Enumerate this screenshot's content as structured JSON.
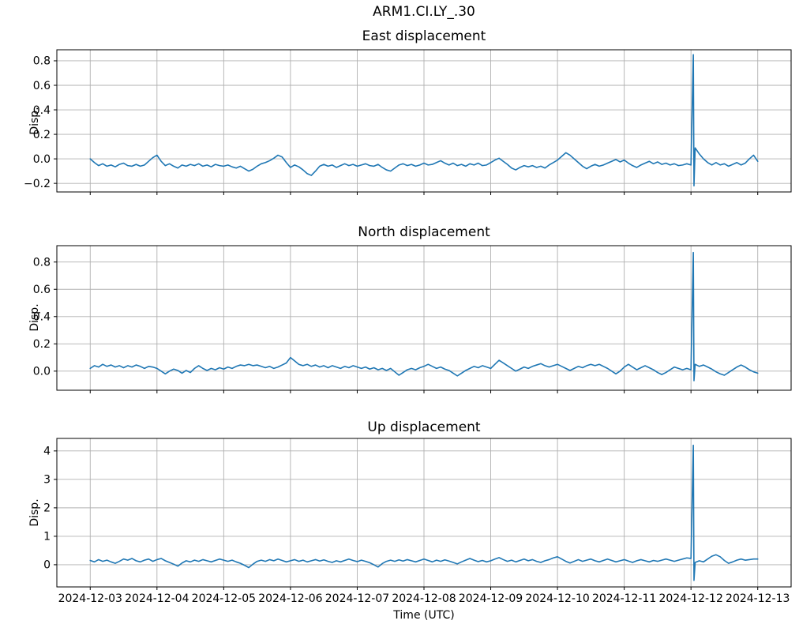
{
  "figure": {
    "suptitle": "ARM1.CI.LY_.30",
    "xlabel": "Time (UTC)",
    "background": "#ffffff",
    "line_color": "#1f77b4",
    "grid_color": "#b0b0b0",
    "spine_color": "#000000",
    "text_color": "#000000",
    "xtick_labels": [
      "2024-12-03",
      "2024-12-04",
      "2024-12-05",
      "2024-12-06",
      "2024-12-07",
      "2024-12-08",
      "2024-12-09",
      "2024-12-10",
      "2024-12-11",
      "2024-12-12",
      "2024-12-13"
    ]
  },
  "chart_data": [
    {
      "type": "line",
      "title": "East displacement",
      "ylabel": "Disp.",
      "xlabel": "",
      "grid": true,
      "legend": false,
      "xlim": [
        -0.5,
        10.5
      ],
      "ylim": [
        -0.27,
        0.89
      ],
      "xticks": [
        0,
        1,
        2,
        3,
        4,
        5,
        6,
        7,
        8,
        9,
        10
      ],
      "yticks": [
        0.8,
        0.6,
        0.4,
        0.2,
        0.0,
        -0.2
      ],
      "ytick_labels": [
        "0.8",
        "0.6",
        "0.4",
        "0.2",
        "0.0",
        "−0.2"
      ],
      "x0": 0,
      "dt": 0.0625,
      "values": [
        0.0,
        -0.03,
        -0.055,
        -0.04,
        -0.06,
        -0.05,
        -0.065,
        -0.045,
        -0.035,
        -0.055,
        -0.06,
        -0.045,
        -0.06,
        -0.05,
        -0.02,
        0.01,
        0.03,
        -0.02,
        -0.055,
        -0.04,
        -0.06,
        -0.075,
        -0.05,
        -0.06,
        -0.045,
        -0.055,
        -0.04,
        -0.06,
        -0.05,
        -0.065,
        -0.045,
        -0.055,
        -0.06,
        -0.05,
        -0.065,
        -0.075,
        -0.06,
        -0.08,
        -0.1,
        -0.085,
        -0.06,
        -0.04,
        -0.03,
        -0.015,
        0.005,
        0.03,
        0.015,
        -0.03,
        -0.07,
        -0.05,
        -0.065,
        -0.09,
        -0.12,
        -0.135,
        -0.1,
        -0.06,
        -0.045,
        -0.06,
        -0.05,
        -0.07,
        -0.055,
        -0.04,
        -0.055,
        -0.045,
        -0.06,
        -0.05,
        -0.04,
        -0.055,
        -0.06,
        -0.045,
        -0.07,
        -0.09,
        -0.1,
        -0.075,
        -0.05,
        -0.04,
        -0.055,
        -0.045,
        -0.06,
        -0.05,
        -0.035,
        -0.05,
        -0.045,
        -0.03,
        -0.015,
        -0.035,
        -0.05,
        -0.035,
        -0.055,
        -0.045,
        -0.06,
        -0.04,
        -0.05,
        -0.035,
        -0.055,
        -0.05,
        -0.03,
        -0.01,
        0.005,
        -0.02,
        -0.045,
        -0.075,
        -0.09,
        -0.07,
        -0.055,
        -0.065,
        -0.055,
        -0.07,
        -0.06,
        -0.075,
        -0.05,
        -0.03,
        -0.01,
        0.02,
        0.05,
        0.03,
        0.0,
        -0.03,
        -0.06,
        -0.08,
        -0.06,
        -0.045,
        -0.06,
        -0.05,
        -0.035,
        -0.02,
        -0.005,
        -0.025,
        -0.01,
        -0.035,
        -0.055,
        -0.07,
        -0.05,
        -0.035,
        -0.02,
        -0.04,
        -0.025,
        -0.045,
        -0.035,
        -0.05,
        -0.04,
        -0.055,
        -0.05,
        -0.04,
        -0.05,
        0.09,
        0.04,
        0.0,
        -0.03,
        -0.05,
        -0.03,
        -0.05,
        -0.04,
        -0.06,
        -0.045,
        -0.03,
        -0.05,
        -0.035,
        0.0,
        0.03,
        -0.02
      ],
      "spike": {
        "x": 9.04,
        "peak": 0.85,
        "trough": -0.22
      }
    },
    {
      "type": "line",
      "title": "North displacement",
      "ylabel": "Disp.",
      "xlabel": "",
      "grid": true,
      "legend": false,
      "xlim": [
        -0.5,
        10.5
      ],
      "ylim": [
        -0.14,
        0.92
      ],
      "xticks": [
        0,
        1,
        2,
        3,
        4,
        5,
        6,
        7,
        8,
        9,
        10
      ],
      "yticks": [
        0.8,
        0.6,
        0.4,
        0.2,
        0.0
      ],
      "ytick_labels": [
        "0.8",
        "0.6",
        "0.4",
        "0.2",
        "0.0"
      ],
      "x0": 0,
      "dt": 0.0625,
      "values": [
        0.02,
        0.04,
        0.03,
        0.05,
        0.035,
        0.045,
        0.03,
        0.04,
        0.025,
        0.04,
        0.03,
        0.045,
        0.035,
        0.02,
        0.035,
        0.03,
        0.02,
        0.0,
        -0.02,
        0.0,
        0.015,
        0.005,
        -0.015,
        0.005,
        -0.01,
        0.02,
        0.04,
        0.02,
        0.005,
        0.02,
        0.01,
        0.025,
        0.015,
        0.03,
        0.02,
        0.035,
        0.045,
        0.04,
        0.05,
        0.04,
        0.045,
        0.035,
        0.025,
        0.035,
        0.02,
        0.03,
        0.045,
        0.06,
        0.1,
        0.075,
        0.05,
        0.04,
        0.05,
        0.035,
        0.045,
        0.03,
        0.04,
        0.025,
        0.04,
        0.03,
        0.02,
        0.035,
        0.025,
        0.04,
        0.03,
        0.02,
        0.03,
        0.015,
        0.025,
        0.01,
        0.02,
        0.005,
        0.02,
        -0.005,
        -0.03,
        -0.01,
        0.01,
        0.02,
        0.01,
        0.025,
        0.035,
        0.05,
        0.035,
        0.02,
        0.03,
        0.015,
        0.005,
        -0.015,
        -0.035,
        -0.015,
        0.005,
        0.02,
        0.035,
        0.025,
        0.04,
        0.03,
        0.02,
        0.05,
        0.08,
        0.06,
        0.04,
        0.02,
        0.0,
        0.015,
        0.03,
        0.02,
        0.035,
        0.045,
        0.055,
        0.04,
        0.03,
        0.04,
        0.05,
        0.035,
        0.02,
        0.005,
        0.02,
        0.035,
        0.025,
        0.04,
        0.05,
        0.04,
        0.05,
        0.035,
        0.02,
        0.0,
        -0.02,
        0.0,
        0.03,
        0.05,
        0.03,
        0.01,
        0.025,
        0.04,
        0.025,
        0.01,
        -0.01,
        -0.025,
        -0.01,
        0.01,
        0.03,
        0.02,
        0.01,
        0.02,
        0.01,
        0.05,
        0.035,
        0.045,
        0.03,
        0.015,
        -0.005,
        -0.02,
        -0.03,
        -0.01,
        0.01,
        0.03,
        0.045,
        0.03,
        0.01,
        -0.005,
        -0.015
      ],
      "spike": {
        "x": 9.04,
        "peak": 0.87,
        "trough": -0.07
      }
    },
    {
      "type": "line",
      "title": "Up displacement",
      "ylabel": "Disp.",
      "xlabel": "Time (UTC)",
      "grid": true,
      "legend": false,
      "xlim": [
        -0.5,
        10.5
      ],
      "ylim": [
        -0.78,
        4.44
      ],
      "xticks": [
        0,
        1,
        2,
        3,
        4,
        5,
        6,
        7,
        8,
        9,
        10
      ],
      "yticks": [
        4,
        3,
        2,
        1,
        0
      ],
      "ytick_labels": [
        "4",
        "3",
        "2",
        "1",
        "0"
      ],
      "x0": 0,
      "dt": 0.0625,
      "values": [
        0.15,
        0.1,
        0.18,
        0.12,
        0.16,
        0.1,
        0.05,
        0.12,
        0.2,
        0.16,
        0.22,
        0.14,
        0.1,
        0.16,
        0.2,
        0.12,
        0.18,
        0.22,
        0.14,
        0.08,
        0.02,
        -0.05,
        0.06,
        0.14,
        0.1,
        0.16,
        0.12,
        0.18,
        0.14,
        0.1,
        0.15,
        0.2,
        0.16,
        0.12,
        0.16,
        0.1,
        0.05,
        -0.02,
        -0.1,
        0.02,
        0.12,
        0.16,
        0.12,
        0.18,
        0.14,
        0.2,
        0.15,
        0.1,
        0.14,
        0.18,
        0.12,
        0.16,
        0.1,
        0.14,
        0.18,
        0.13,
        0.17,
        0.12,
        0.08,
        0.14,
        0.1,
        0.15,
        0.2,
        0.15,
        0.11,
        0.16,
        0.12,
        0.07,
        0.0,
        -0.08,
        0.04,
        0.12,
        0.16,
        0.12,
        0.17,
        0.13,
        0.18,
        0.14,
        0.1,
        0.15,
        0.2,
        0.15,
        0.1,
        0.16,
        0.12,
        0.17,
        0.13,
        0.08,
        0.03,
        0.1,
        0.16,
        0.22,
        0.16,
        0.11,
        0.15,
        0.1,
        0.14,
        0.2,
        0.25,
        0.18,
        0.12,
        0.16,
        0.1,
        0.15,
        0.2,
        0.14,
        0.18,
        0.12,
        0.08,
        0.14,
        0.18,
        0.24,
        0.28,
        0.2,
        0.12,
        0.06,
        0.12,
        0.18,
        0.12,
        0.16,
        0.2,
        0.14,
        0.1,
        0.15,
        0.2,
        0.15,
        0.1,
        0.14,
        0.18,
        0.13,
        0.08,
        0.14,
        0.18,
        0.14,
        0.1,
        0.15,
        0.12,
        0.16,
        0.2,
        0.16,
        0.12,
        0.16,
        0.2,
        0.24,
        0.22,
        0.08,
        0.14,
        0.1,
        0.2,
        0.3,
        0.35,
        0.28,
        0.15,
        0.05,
        0.1,
        0.16,
        0.2,
        0.16,
        0.18,
        0.2,
        0.2
      ],
      "spike": {
        "x": 9.04,
        "peak": 4.2,
        "trough": -0.55
      }
    }
  ]
}
